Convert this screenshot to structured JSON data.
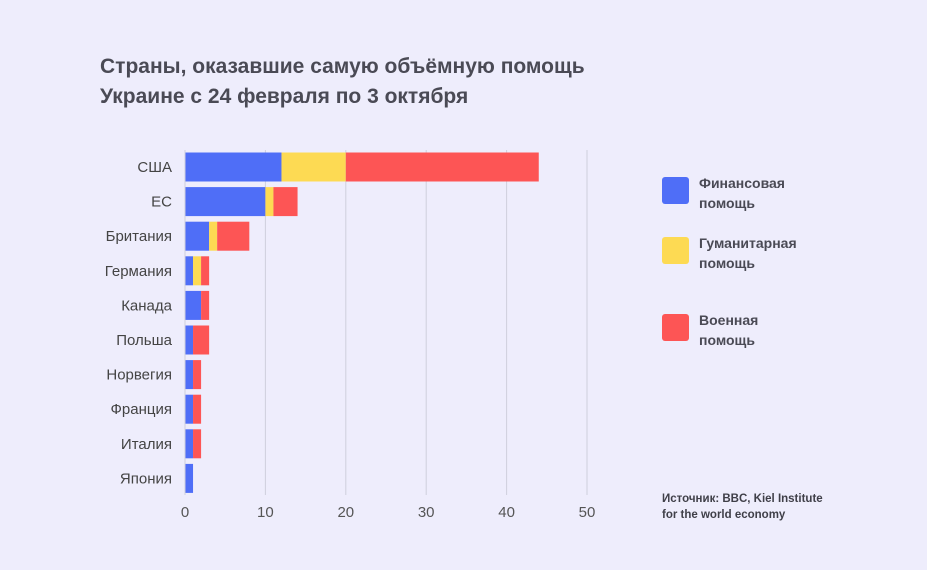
{
  "chart_data": {
    "type": "bar",
    "orientation": "horizontal",
    "stacked": true,
    "title": "Страны, оказавшие самую объёмную помощь Украине с 24 февраля по 3 октября",
    "title_lines": [
      "Страны, оказавшие самую объёмную помощь",
      "Украине с 24 февраля по 3 октября"
    ],
    "categories": [
      "США",
      "ЕС",
      "Британия",
      "Германия",
      "Канада",
      "Польша",
      "Норвегия",
      "Франция",
      "Италия",
      "Япония"
    ],
    "series": [
      {
        "name": "Финансовая помощь",
        "name_lines": [
          "Финансовая",
          "помощь"
        ],
        "color": "#4f6ef7",
        "values": [
          12,
          10,
          3,
          1,
          2,
          1,
          1,
          1,
          1,
          1
        ]
      },
      {
        "name": "Гуманитарная помощь",
        "name_lines": [
          "Гуманитарная",
          "помощь"
        ],
        "color": "#fdda53",
        "values": [
          8,
          1,
          1,
          1,
          0,
          0,
          0,
          0,
          0,
          0
        ]
      },
      {
        "name": "Военная помощь",
        "name_lines": [
          "Военная",
          "помощь"
        ],
        "color": "#fd5555",
        "values": [
          24,
          3,
          4,
          1,
          1,
          2,
          1,
          1,
          1,
          0
        ]
      }
    ],
    "xlim": [
      0,
      50
    ],
    "xticks": [
      "0",
      "10",
      "20",
      "30",
      "40",
      "50"
    ],
    "grid": true,
    "legend_position": "right",
    "xlabel": "",
    "ylabel": ""
  },
  "source": [
    "Источник: BBC, Kiel Institute",
    "for the world economy"
  ]
}
